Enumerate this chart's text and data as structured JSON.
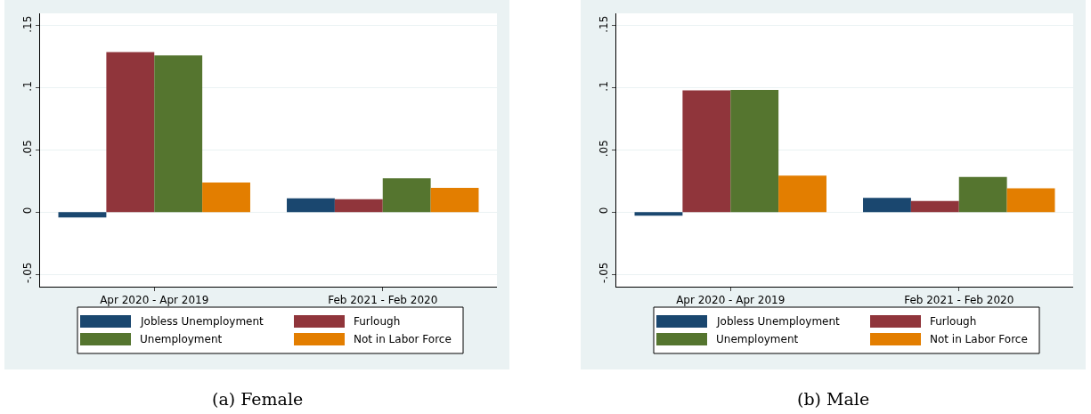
{
  "chart_data": [
    {
      "type": "bar",
      "title": "(a) Female",
      "categories": [
        "Apr 2020 - Apr 2019",
        "Feb 2021 - Feb 2020"
      ],
      "series": [
        {
          "name": "Jobless Unemployment",
          "color": "#1a476f",
          "values": [
            -0.0043,
            0.0112
          ]
        },
        {
          "name": "Furlough",
          "color": "#90353b",
          "values": [
            0.1289,
            0.0104
          ]
        },
        {
          "name": "Unemployment",
          "color": "#55752f",
          "values": [
            0.1262,
            0.0273
          ]
        },
        {
          "name": "Not in Labor Force",
          "color": "#e37e00",
          "values": [
            0.0238,
            0.0195
          ]
        }
      ],
      "ylim": [
        -0.06,
        0.16
      ],
      "yticks": [
        {
          "value": -0.05,
          "label": "-.05"
        },
        0,
        {
          "value": 0.05,
          "label": ".05"
        },
        {
          "value": 0.1,
          "label": ".1"
        },
        {
          "value": 0.15,
          "label": ".15"
        }
      ],
      "grid": "y",
      "legend": "bottom"
    },
    {
      "type": "bar",
      "title": "(b) Male",
      "categories": [
        "Apr 2020 - Apr 2019",
        "Feb 2021 - Feb 2020"
      ],
      "series": [
        {
          "name": "Jobless Unemployment",
          "color": "#1a476f",
          "values": [
            -0.0029,
            0.0114
          ]
        },
        {
          "name": "Furlough",
          "color": "#90353b",
          "values": [
            0.0981,
            0.009
          ]
        },
        {
          "name": "Unemployment",
          "color": "#55752f",
          "values": [
            0.0984,
            0.0284
          ]
        },
        {
          "name": "Not in Labor Force",
          "color": "#e37e00",
          "values": [
            0.0294,
            0.0191
          ]
        }
      ],
      "ylim": [
        -0.06,
        0.16
      ],
      "yticks": [
        {
          "value": -0.05,
          "label": "-.05"
        },
        0,
        {
          "value": 0.05,
          "label": ".05"
        },
        {
          "value": 0.1,
          "label": ".1"
        },
        {
          "value": 0.15,
          "label": ".15"
        }
      ],
      "grid": "y",
      "legend": "bottom"
    }
  ]
}
